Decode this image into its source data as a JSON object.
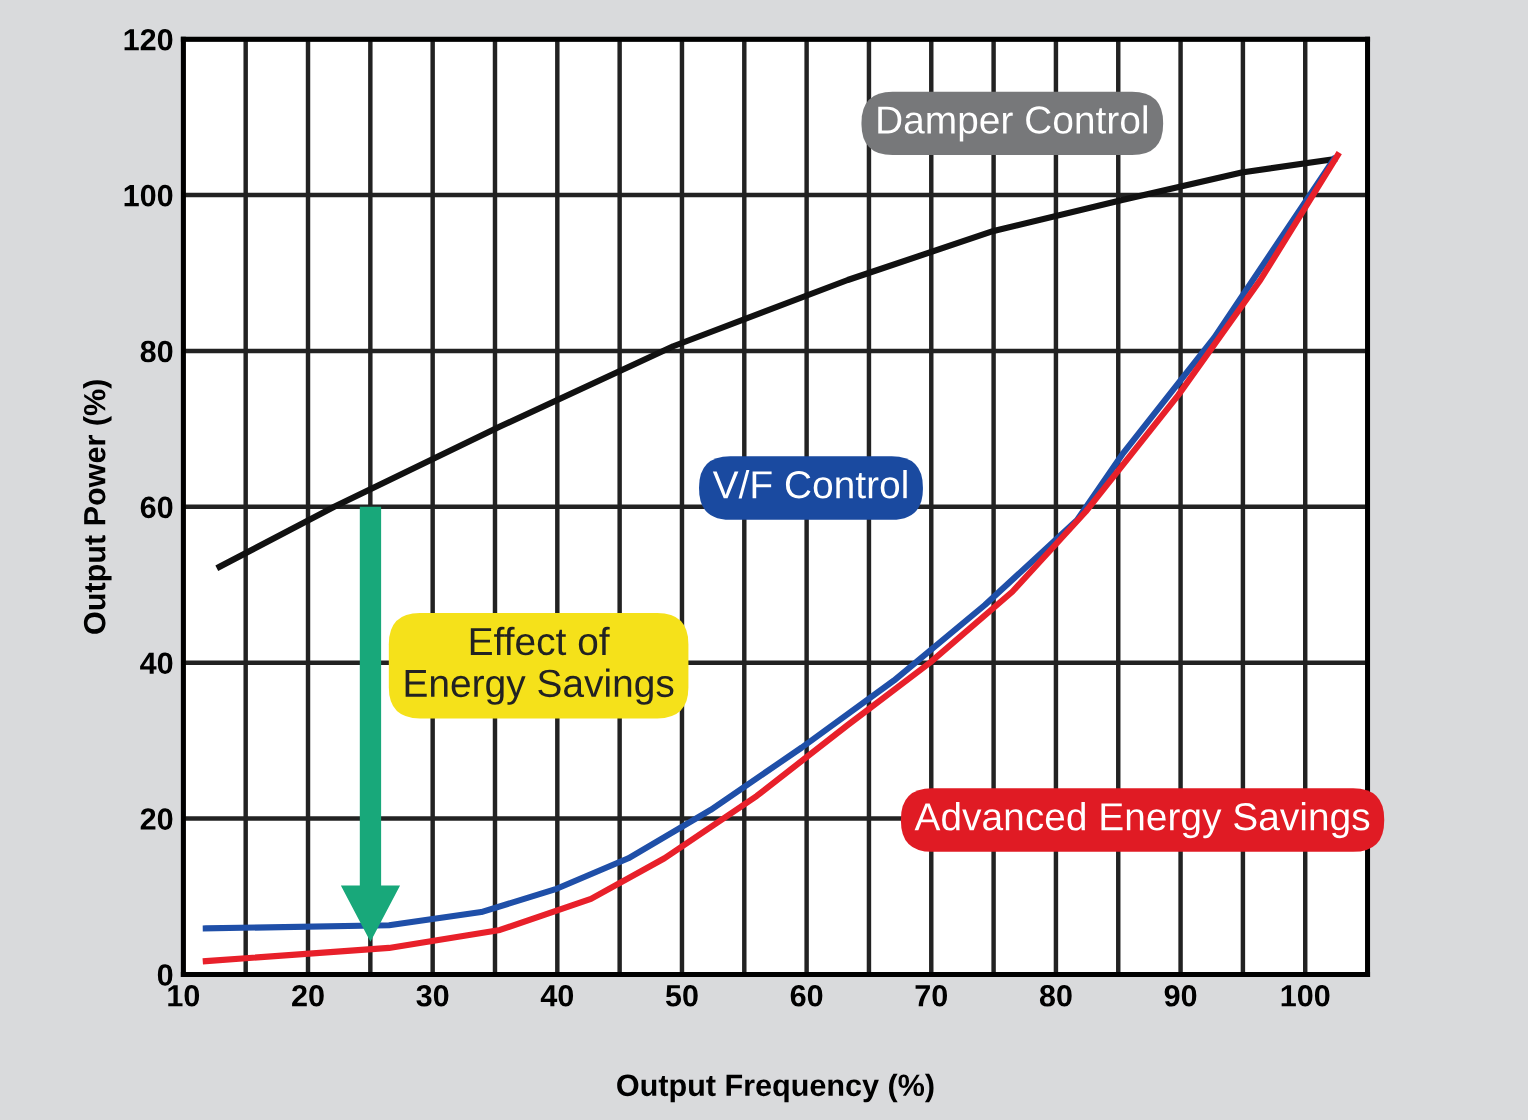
{
  "chart_data": {
    "type": "line",
    "xlabel": "Output Frequency (%)",
    "ylabel": "Output Power (%)",
    "xlim": [
      10,
      105
    ],
    "ylim": [
      0,
      120
    ],
    "xticks": [
      10,
      {
        "value": 15,
        "label": null
      },
      20,
      {
        "value": 25,
        "label": null
      },
      30,
      {
        "value": 35,
        "label": null
      },
      40,
      {
        "value": 45,
        "label": null
      },
      50,
      {
        "value": 55,
        "label": null
      },
      60,
      {
        "value": 65,
        "label": null
      },
      70,
      {
        "value": 75,
        "label": null
      },
      80,
      {
        "value": 85,
        "label": null
      },
      90,
      {
        "value": 95,
        "label": null
      },
      100,
      {
        "value": 105,
        "label": null
      }
    ],
    "yticks": [
      0,
      20,
      40,
      60,
      80,
      100,
      120
    ],
    "grid": true,
    "marker": "none",
    "line_style": "solid",
    "series": [
      {
        "name": "Damper Control",
        "color": "#111111",
        "x": [
          12.9,
          22.1,
          35.4,
          49.3,
          63.3,
          75,
          85.4,
          94.9,
          102.3
        ],
        "values": [
          52.3,
          60,
          70.3,
          80.6,
          89.1,
          95.4,
          99.4,
          102.9,
          104.6
        ]
      },
      {
        "name": "V/F Control",
        "color": "#1f4fa8",
        "x": [
          11.8,
          26.5,
          33.9,
          39.8,
          45.7,
          52.3,
          59.6,
          67,
          74.3,
          81.7,
          85.4,
          92.7,
          102.3
        ],
        "values": [
          5.9,
          6.3,
          8,
          10.9,
          14.9,
          21.1,
          29.1,
          37.7,
          47.4,
          58.3,
          66.9,
          81.7,
          104.6
        ]
      },
      {
        "name": "Advanced Energy Savings",
        "color": "#e8202a",
        "x": [
          11.8,
          26.5,
          35.4,
          42.7,
          48.6,
          56,
          63.3,
          69.9,
          76.5,
          82.4,
          89.8,
          96.4,
          102.6
        ],
        "values": [
          1.7,
          3.4,
          5.7,
          9.7,
          14.9,
          22.9,
          32,
          40,
          49.1,
          59.4,
          74.3,
          89.1,
          105.1
        ]
      }
    ],
    "annotations": [
      "Effect of\nEnergy Savings"
    ]
  }
}
